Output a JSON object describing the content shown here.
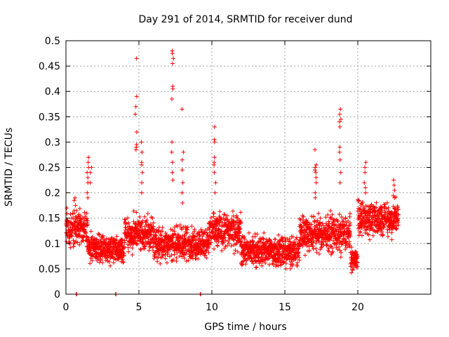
{
  "chart_data": {
    "type": "scatter",
    "title": "Day 291 of 2014, SRMTID for receiver dund",
    "xlabel": "GPS time / hours",
    "ylabel": "SRMTID / TECUs",
    "xlim": [
      0,
      25
    ],
    "ylim": [
      0,
      0.5
    ],
    "xticks": [
      0,
      5,
      10,
      15,
      20
    ],
    "xtick_labels": [
      "0",
      "5",
      "10",
      "15",
      "20"
    ],
    "yticks": [
      0,
      0.05,
      0.1,
      0.15,
      0.2,
      0.25,
      0.3,
      0.35,
      0.4,
      0.45,
      0.5
    ],
    "ytick_labels": [
      "0",
      "0.05",
      "0.1",
      "0.15",
      "0.2",
      "0.25",
      "0.3",
      "0.35",
      "0.4",
      "0.45",
      "0.5"
    ],
    "grid": true,
    "marker": "+",
    "color": "#ff0000",
    "x_span": [
      0.0,
      22.8
    ],
    "baseline_segments": [
      {
        "x_start": 0.0,
        "x_end": 1.5,
        "base": 0.13,
        "spread": 0.05
      },
      {
        "x_start": 1.5,
        "x_end": 4.0,
        "base": 0.09,
        "spread": 0.04
      },
      {
        "x_start": 4.0,
        "x_end": 6.0,
        "base": 0.12,
        "spread": 0.05
      },
      {
        "x_start": 6.0,
        "x_end": 9.8,
        "base": 0.1,
        "spread": 0.045
      },
      {
        "x_start": 9.8,
        "x_end": 12.0,
        "base": 0.125,
        "spread": 0.05
      },
      {
        "x_start": 12.0,
        "x_end": 16.0,
        "base": 0.085,
        "spread": 0.045
      },
      {
        "x_start": 16.0,
        "x_end": 19.5,
        "base": 0.12,
        "spread": 0.05
      },
      {
        "x_start": 19.5,
        "x_end": 20.0,
        "base": 0.07,
        "spread": 0.03
      },
      {
        "x_start": 20.0,
        "x_end": 22.8,
        "base": 0.15,
        "spread": 0.05
      }
    ],
    "spikes": [
      {
        "x": 0.6,
        "ys": [
          0.19,
          0.185,
          0.175,
          0.165,
          0.16
        ]
      },
      {
        "x": 1.5,
        "ys": [
          0.27,
          0.26,
          0.25,
          0.24,
          0.23,
          0.22,
          0.2,
          0.19
        ]
      },
      {
        "x": 1.7,
        "ys": [
          0.25,
          0.24,
          0.22
        ]
      },
      {
        "x": 4.8,
        "ys": [
          0.465,
          0.39,
          0.37,
          0.355,
          0.32,
          0.295,
          0.29,
          0.285
        ]
      },
      {
        "x": 5.2,
        "ys": [
          0.3,
          0.28,
          0.26,
          0.255,
          0.24,
          0.22,
          0.2
        ]
      },
      {
        "x": 7.3,
        "ys": [
          0.48,
          0.475,
          0.465,
          0.455,
          0.41,
          0.405,
          0.385,
          0.3,
          0.28,
          0.26,
          0.24,
          0.225
        ]
      },
      {
        "x": 8.0,
        "ys": [
          0.365,
          0.28,
          0.265,
          0.245,
          0.22,
          0.2,
          0.18
        ]
      },
      {
        "x": 10.2,
        "ys": [
          0.33,
          0.305,
          0.3,
          0.27,
          0.26,
          0.255,
          0.24,
          0.22,
          0.2
        ]
      },
      {
        "x": 17.1,
        "ys": [
          0.285,
          0.255,
          0.25,
          0.245,
          0.24,
          0.23,
          0.22,
          0.2,
          0.19
        ]
      },
      {
        "x": 18.8,
        "ys": [
          0.365,
          0.355,
          0.345,
          0.34,
          0.33,
          0.29,
          0.28,
          0.265,
          0.24,
          0.22
        ]
      },
      {
        "x": 20.5,
        "ys": [
          0.26,
          0.25,
          0.24,
          0.22,
          0.21,
          0.2
        ]
      },
      {
        "x": 22.5,
        "ys": [
          0.225,
          0.215,
          0.205,
          0.19
        ]
      }
    ],
    "zero_points": [
      0.7,
      3.4,
      9.2
    ]
  }
}
